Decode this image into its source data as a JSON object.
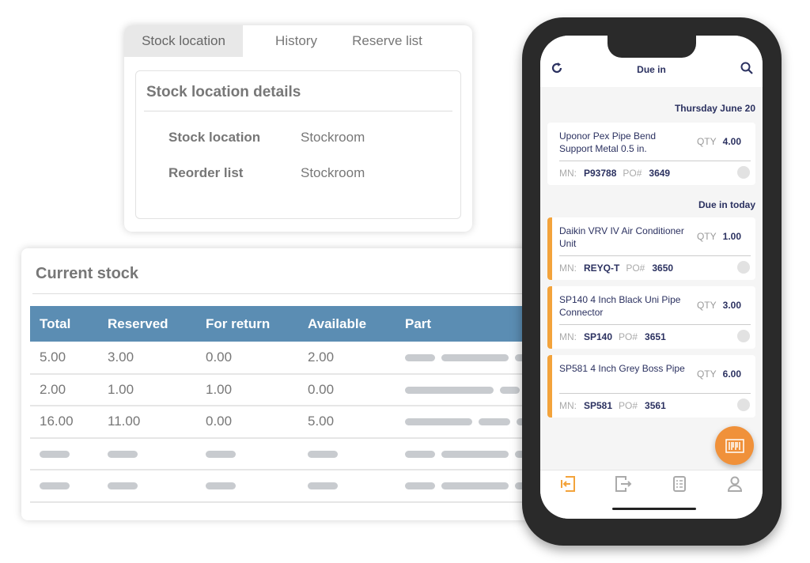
{
  "stock_panel": {
    "tabs": [
      {
        "label": "Stock location",
        "active": true
      },
      {
        "label": "History"
      },
      {
        "label": "Reserve list"
      }
    ],
    "title": "Stock location details",
    "fields": [
      {
        "key": "Stock location",
        "value": "Stockroom"
      },
      {
        "key": "Reorder list",
        "value": "Stockroom"
      }
    ]
  },
  "current_stock": {
    "title": "Current stock",
    "columns": [
      "Total",
      "Reserved",
      "For return",
      "Available",
      "Part"
    ],
    "rows": [
      [
        "5.00",
        "3.00",
        "0.00",
        "2.00"
      ],
      [
        "2.00",
        "1.00",
        "1.00",
        "0.00"
      ],
      [
        "16.00",
        "11.00",
        "0.00",
        "5.00"
      ]
    ]
  },
  "phone": {
    "title": "Due in",
    "accent": "#f3a33b",
    "sections": [
      {
        "label": "Thursday June 20",
        "items": [
          {
            "name": "Uponor Pex Pipe Bend Support Metal 0.5 in.",
            "qty": "4.00",
            "mn": "P93788",
            "po": "3649",
            "flag": false
          }
        ]
      },
      {
        "label": "Due in today",
        "items": [
          {
            "name": "Daikin VRV IV Air Conditioner Unit",
            "qty": "1.00",
            "mn": "REYQ-T",
            "po": "3650",
            "flag": true
          },
          {
            "name": "SP140 4 Inch Black Uni Pipe Connector",
            "qty": "3.00",
            "mn": "SP140",
            "po": "3651",
            "flag": true
          },
          {
            "name": "SP581 4 Inch Grey Boss Pipe",
            "qty": "6.00",
            "mn": "SP581",
            "po": "3561",
            "flag": true
          }
        ]
      }
    ],
    "labels": {
      "qty": "QTY",
      "mn": "MN:",
      "po": "PO#"
    },
    "nav": [
      "check-in-icon",
      "check-out-icon",
      "checklist-icon",
      "user-icon"
    ]
  }
}
